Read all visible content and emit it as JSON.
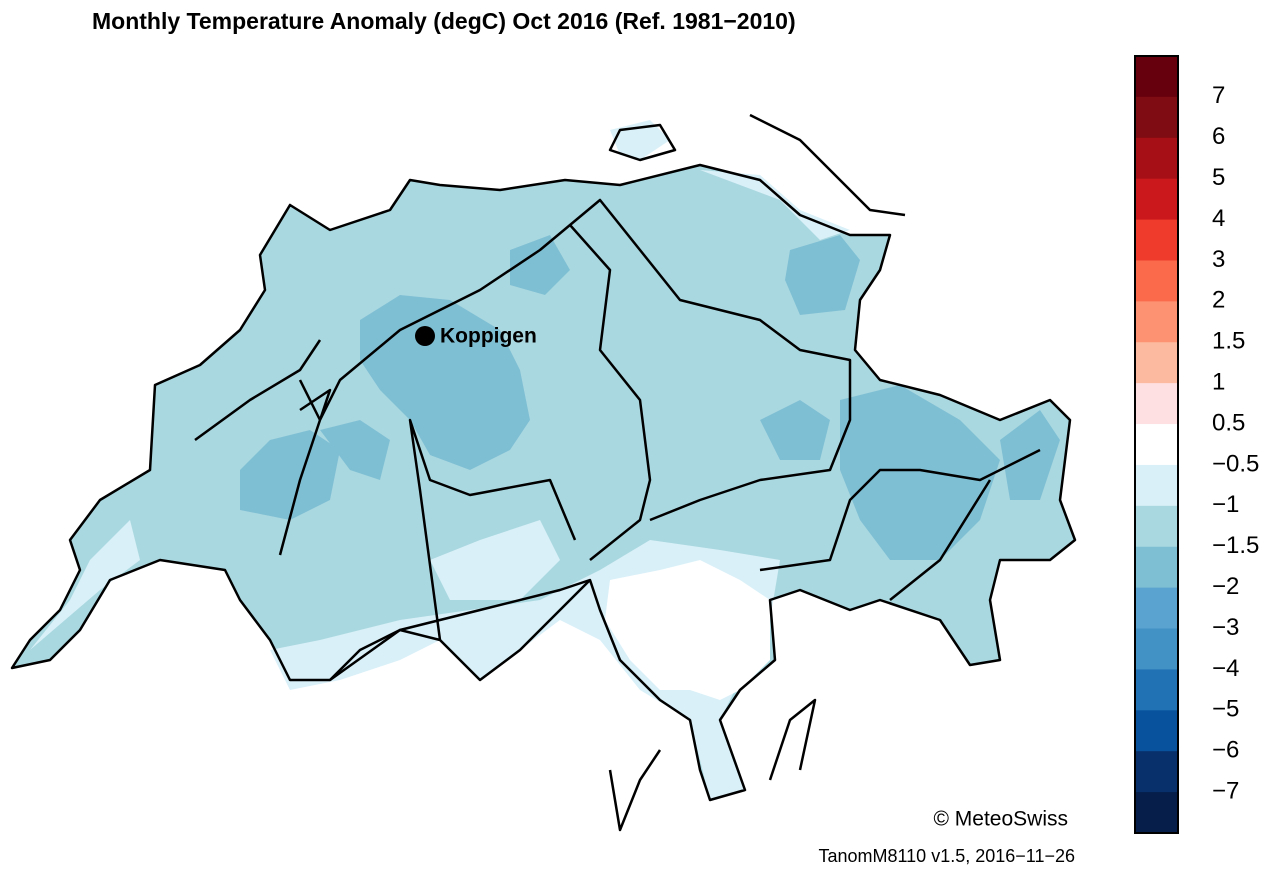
{
  "title": "Monthly Temperature Anomaly (degC) Oct 2016  (Ref. 1981−2010)",
  "legend": {
    "labels": [
      "7",
      "6",
      "5",
      "4",
      "3",
      "2",
      "1.5",
      "1",
      "0.5",
      "−0.5",
      "−1",
      "−1.5",
      "−2",
      "−3",
      "−4",
      "−5",
      "−6",
      "−7"
    ],
    "colors": [
      "#67000d",
      "#7f0c12",
      "#a50f15",
      "#cb181d",
      "#ef3b2c",
      "#fb6a4a",
      "#fc9272",
      "#fcbba1",
      "#fee0e2",
      "#ffffff",
      "#d9f0f8",
      "#aad8e0",
      "#7fbfd4",
      "#5aa3d0",
      "#4292c6",
      "#2171b5",
      "#08519c",
      "#08306b",
      "#061e4a"
    ]
  },
  "station": {
    "name": "Koppigen"
  },
  "footer": {
    "copyright": "© MeteoSwiss",
    "version": "TanomM8110 v1.5, 2016−11−26"
  }
}
